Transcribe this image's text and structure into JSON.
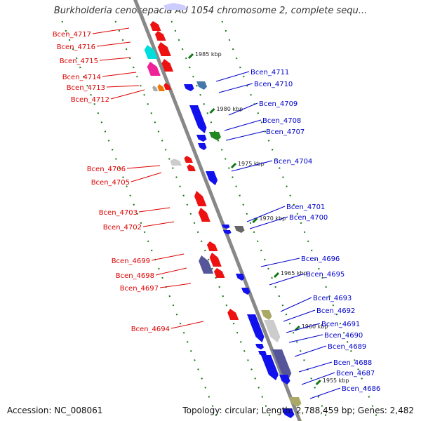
{
  "title": "Burkholderia cenocepacia AU 1054 chromosome 2, complete sequ...",
  "footer": {
    "accession": "Accession: NC_008061",
    "topology": "Topology: circular; Length: 2,788,459 bp; Genes: 2,482"
  },
  "scale_labels": [
    "1985 kbp",
    "1980 kbp",
    "1975 kbp",
    "1970 kbp",
    "1965 kbp",
    "1960 kbp",
    "1955 kbp"
  ],
  "genes_left": [
    "Bcen_4717",
    "Bcen_4716",
    "Bcen_4715",
    "Bcen_4714",
    "Bcen_4713",
    "Bcen_4712",
    "Bcen_4706",
    "Bcen_4705",
    "Bcen_4703",
    "Bcen_4702",
    "Bcen_4699",
    "Bcen_4698",
    "Bcen_4697",
    "Bcen_4694"
  ],
  "genes_right": [
    "Bcen_4711",
    "Bcen_4710",
    "Bcen_4709",
    "Bcen_4708",
    "Bcen_4707",
    "Bcen_4704",
    "Bcen_4701",
    "Bcen_4700",
    "Bcen_4696",
    "Bcen_4695",
    "Bcen_4693",
    "Bcen_4692",
    "Bcen_4691",
    "Bcen_4690",
    "Bcen_4689",
    "Bcen_4688",
    "Bcen_4687",
    "Bcen_4686"
  ],
  "colors": {
    "reverse_label": "#dd0000",
    "forward_label": "#0000cc",
    "reverse_gene": "#ee1111",
    "forward_gene": "#1111ee",
    "backbone": "#888888",
    "tick": "#117711"
  }
}
